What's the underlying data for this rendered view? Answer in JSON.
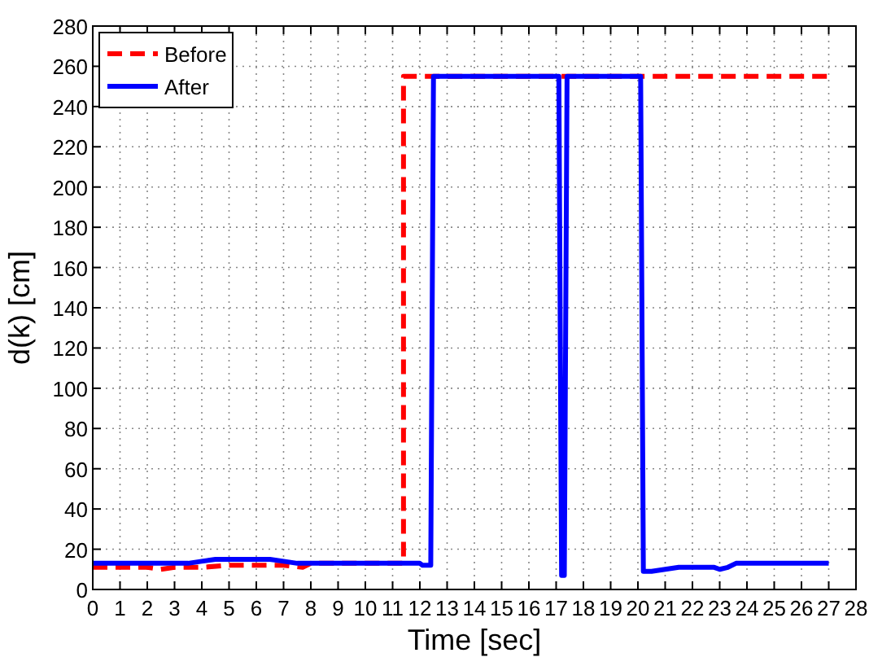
{
  "chart_data": {
    "type": "line",
    "xlabel": "Time [sec]",
    "ylabel": "d(k) [cm]",
    "xlim": [
      0,
      28
    ],
    "ylim": [
      0,
      280
    ],
    "xticks": [
      0,
      1,
      2,
      3,
      4,
      5,
      6,
      7,
      8,
      9,
      10,
      11,
      12,
      13,
      14,
      15,
      16,
      17,
      18,
      19,
      20,
      21,
      22,
      23,
      24,
      25,
      26,
      27,
      28
    ],
    "yticks": [
      0,
      20,
      40,
      60,
      80,
      100,
      120,
      140,
      160,
      180,
      200,
      220,
      240,
      260,
      280
    ],
    "grid": true,
    "legend": "top left",
    "series": [
      {
        "name": "Before",
        "color": "#ff0000",
        "line_style": "dashed",
        "x": [
          0,
          1,
          2,
          2.5,
          3,
          4,
          5,
          6,
          7,
          7.7,
          8,
          11.4,
          11.4,
          27
        ],
        "values": [
          11,
          11,
          11,
          10,
          11,
          11,
          12,
          12,
          12,
          11,
          13,
          13,
          255,
          255
        ]
      },
      {
        "name": "After",
        "color": "#0000ff",
        "line_style": "solid",
        "x": [
          0,
          3.5,
          4,
          4.5,
          6.5,
          7,
          7.5,
          12,
          12.1,
          12.4,
          12.5,
          17.1,
          17.2,
          17.3,
          17.4,
          17.5,
          20.1,
          20.2,
          20.5,
          21,
          21.5,
          22.8,
          23,
          23.3,
          23.6,
          27
        ],
        "values": [
          13,
          13,
          14,
          15,
          15,
          14,
          13,
          13,
          12,
          12,
          255,
          255,
          7,
          7,
          255,
          255,
          255,
          9,
          9,
          10,
          11,
          11,
          10,
          11,
          13,
          13
        ]
      }
    ]
  }
}
